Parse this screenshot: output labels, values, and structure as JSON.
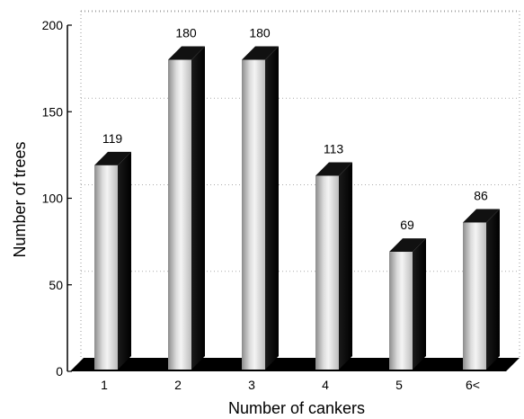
{
  "chart_data": {
    "type": "bar",
    "title": "",
    "xlabel": "Number of cankers",
    "ylabel": "Number of trees",
    "categories": [
      "1",
      "2",
      "3",
      "4",
      "5",
      "6<"
    ],
    "values": [
      119,
      180,
      180,
      113,
      69,
      86
    ],
    "data_labels": [
      "119",
      "180",
      "180",
      "113",
      "69",
      "86"
    ],
    "yticks": [
      0,
      50,
      100,
      150,
      200
    ],
    "ytick_labels": [
      "0",
      "50",
      "100",
      "150",
      "200"
    ],
    "ylim": [
      0,
      200
    ],
    "grid": "dotted",
    "style": "3d",
    "legend": "none"
  }
}
